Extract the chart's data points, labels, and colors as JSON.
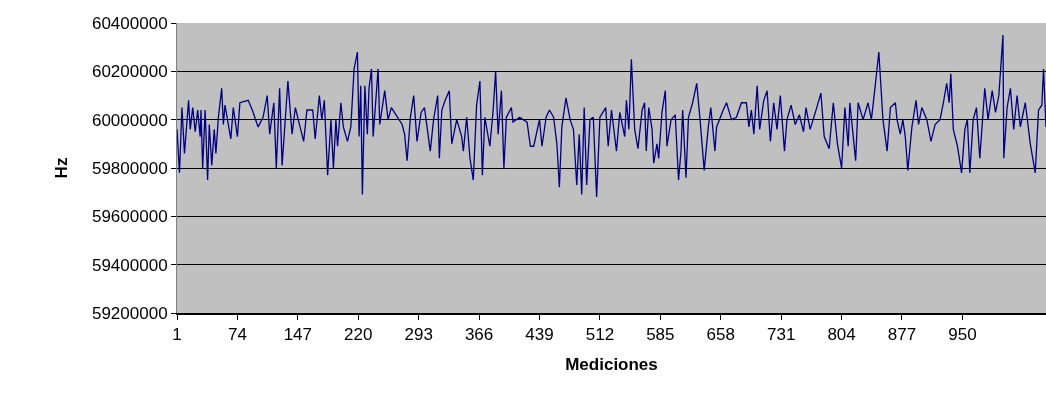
{
  "chart_data": {
    "type": "line",
    "xlabel": "Mediciones",
    "ylabel": "Hz",
    "xlim": [
      1,
      1051
    ],
    "xticks": [
      1,
      74,
      147,
      220,
      293,
      366,
      439,
      512,
      585,
      658,
      731,
      804,
      877,
      950
    ],
    "ylim": [
      59200000,
      60400000
    ],
    "yticks": [
      59200000,
      59400000,
      59600000,
      59800000,
      60000000,
      60200000,
      60400000
    ],
    "grid": "y",
    "marker": "none",
    "line_style": "solid",
    "series": [
      {
        "color": "#000080",
        "x": [
          1,
          4,
          7,
          10,
          15,
          17,
          20,
          23,
          26,
          29,
          30,
          32,
          35,
          38,
          40,
          43,
          46,
          48,
          51,
          55,
          57,
          59,
          66,
          69,
          74,
          77,
          87,
          92,
          99,
          105,
          110,
          113,
          118,
          121,
          125,
          128,
          135,
          140,
          144,
          154,
          158,
          165,
          168,
          173,
          176,
          179,
          183,
          187,
          190,
          193,
          195,
          199,
          202,
          207,
          211,
          215,
          219,
          221,
          223,
          225,
          228,
          231,
          233,
          236,
          238,
          244,
          246,
          252,
          256,
          260,
          273,
          276,
          279,
          283,
          287,
          291,
          296,
          300,
          307,
          311,
          316,
          318,
          321,
          325,
          330,
          333,
          339,
          345,
          347,
          351,
          355,
          359,
          363,
          367,
          370,
          373,
          379,
          383,
          386,
          389,
          393,
          396,
          399,
          405,
          407,
          415,
          424,
          428,
          432,
          439,
          442,
          447,
          451,
          456,
          460,
          463,
          466,
          471,
          476,
          480,
          484,
          487,
          490,
          493,
          496,
          500,
          504,
          508,
          512,
          519,
          522,
          526,
          532,
          536,
          542,
          544,
          547,
          550,
          554,
          558,
          563,
          566,
          568,
          571,
          575,
          577,
          581,
          583,
          587,
          591,
          593,
          598,
          603,
          607,
          610,
          612,
          616,
          619,
          624,
          629,
          633,
          638,
          643,
          646,
          651,
          653,
          661,
          665,
          671,
          677,
          683,
          689,
          692,
          695,
          698,
          702,
          705,
          710,
          714,
          718,
          722,
          726,
          730,
          735,
          738,
          743,
          748,
          753,
          758,
          761,
          766,
          774,
          779,
          783,
          789,
          794,
          799,
          804,
          808,
          812,
          814,
          821,
          824,
          830,
          836,
          840,
          844,
          849,
          854,
          859,
          863,
          869,
          871,
          875,
          878,
          881,
          884,
          889,
          894,
          897,
          901,
          907,
          912,
          917,
          923,
          927,
          931,
          934,
          936,
          939,
          944,
          949,
          953,
          956,
          959,
          963,
          967,
          971,
          977,
          981,
          986,
          990,
          994,
          999,
          1000,
          1004,
          1008,
          1012,
          1016,
          1020,
          1026,
          1032,
          1038,
          1042,
          1046,
          1048,
          1051
        ],
        "values": [
          59960000,
          59780000,
          60050000,
          59860000,
          60080000,
          59960000,
          60050000,
          59950000,
          60040000,
          59930000,
          60040000,
          59800000,
          60040000,
          59750000,
          59980000,
          59810000,
          59960000,
          59860000,
          60010000,
          60130000,
          59980000,
          60060000,
          59920000,
          60050000,
          59930000,
          60070000,
          60080000,
          60040000,
          59970000,
          60010000,
          60100000,
          59940000,
          60070000,
          59800000,
          60130000,
          59810000,
          60160000,
          59940000,
          60050000,
          59910000,
          60040000,
          60040000,
          59920000,
          60100000,
          60000000,
          60080000,
          59770000,
          60000000,
          59800000,
          60000000,
          59890000,
          60070000,
          59970000,
          59910000,
          59970000,
          60210000,
          60280000,
          59930000,
          60140000,
          59690000,
          60140000,
          59940000,
          60130000,
          60210000,
          59930000,
          60210000,
          59980000,
          60120000,
          60000000,
          60050000,
          59980000,
          59940000,
          59830000,
          60010000,
          60100000,
          59910000,
          60030000,
          60050000,
          59870000,
          60000000,
          60100000,
          59840000,
          60040000,
          60080000,
          60120000,
          59900000,
          60000000,
          59930000,
          59870000,
          60010000,
          59840000,
          59750000,
          60060000,
          60160000,
          59770000,
          60010000,
          59890000,
          60040000,
          60200000,
          59940000,
          60120000,
          59800000,
          60010000,
          60050000,
          59990000,
          60010000,
          59990000,
          59890000,
          59890000,
          60000000,
          59890000,
          60010000,
          60040000,
          60010000,
          59900000,
          59720000,
          59970000,
          60090000,
          60000000,
          59960000,
          59730000,
          59940000,
          59690000,
          60050000,
          59730000,
          60000000,
          60010000,
          59680000,
          60010000,
          60050000,
          59890000,
          60040000,
          59870000,
          60030000,
          59930000,
          60080000,
          59960000,
          60250000,
          59960000,
          59880000,
          60040000,
          60070000,
          59870000,
          60050000,
          59960000,
          59820000,
          59900000,
          59840000,
          60030000,
          60120000,
          59890000,
          60000000,
          60020000,
          59750000,
          59870000,
          60040000,
          59760000,
          60010000,
          60070000,
          60150000,
          60000000,
          59790000,
          59970000,
          60050000,
          59870000,
          59970000,
          60040000,
          60070000,
          60000000,
          60010000,
          60070000,
          60070000,
          59970000,
          60040000,
          59940000,
          60140000,
          59960000,
          60080000,
          60120000,
          59910000,
          60070000,
          59960000,
          60100000,
          59870000,
          60000000,
          60060000,
          59980000,
          60020000,
          59950000,
          60050000,
          59960000,
          60050000,
          60110000,
          59930000,
          59880000,
          60070000,
          59900000,
          59800000,
          60050000,
          59890000,
          60070000,
          59830000,
          60070000,
          60000000,
          60070000,
          60000000,
          60120000,
          60280000,
          60000000,
          59870000,
          60050000,
          60070000,
          60000000,
          59940000,
          60000000,
          59930000,
          59790000,
          59970000,
          60080000,
          59980000,
          60050000,
          60000000,
          59910000,
          59980000,
          60000000,
          60070000,
          60150000,
          60070000,
          60190000,
          59960000,
          59890000,
          59780000,
          59960000,
          60000000,
          59780000,
          60000000,
          60050000,
          59840000,
          60130000,
          60000000,
          60120000,
          60030000,
          60100000,
          60350000,
          59840000,
          60050000,
          60130000,
          59960000,
          60100000,
          59970000,
          60070000,
          59900000,
          59780000,
          60040000,
          60060000,
          60210000,
          59970000
        ]
      }
    ]
  }
}
